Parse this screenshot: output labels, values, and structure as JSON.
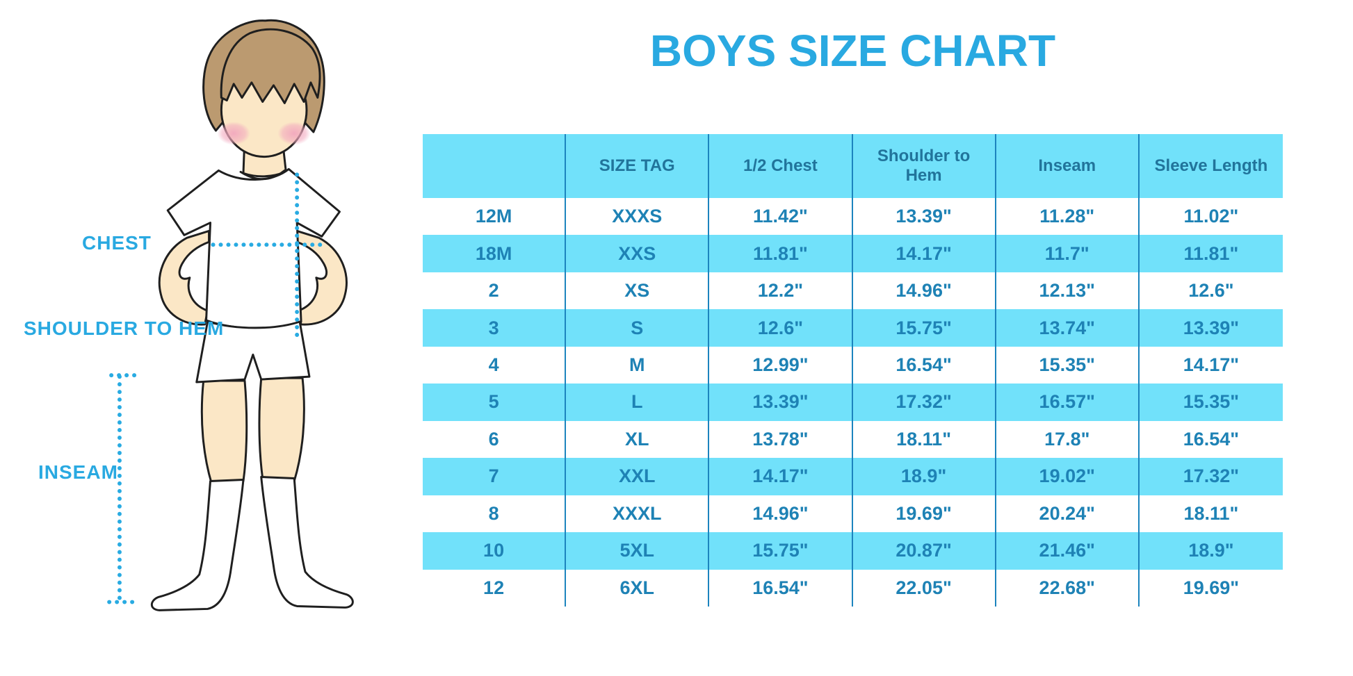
{
  "title": "BOYS SIZE CHART",
  "colors": {
    "accent": "#29A9E1",
    "table_stripe": "#71E1FA",
    "table_header_text": "#21749B",
    "table_cell_text": "#1E82B5",
    "table_divider": "#1C84BE",
    "skin": "#FBE7C6",
    "hair": "#BB9A70",
    "blush": "#F2A8BE",
    "dotted_line": "#29ABE2"
  },
  "figure_labels": {
    "chest": "CHEST",
    "shoulder_to_hem": "SHOULDER TO HEM",
    "inseam": "INSEAM"
  },
  "chart_data": {
    "type": "table",
    "title": "BOYS SIZE CHART",
    "columns": [
      "",
      "SIZE TAG",
      "1/2 Chest",
      "Shoulder to Hem",
      "Inseam",
      "Sleeve Length"
    ],
    "rows": [
      [
        "12M",
        "XXXS",
        "11.42\"",
        "13.39\"",
        "11.28\"",
        "11.02\""
      ],
      [
        "18M",
        "XXS",
        "11.81\"",
        "14.17\"",
        "11.7\"",
        "11.81\""
      ],
      [
        "2",
        "XS",
        "12.2\"",
        "14.96\"",
        "12.13\"",
        "12.6\""
      ],
      [
        "3",
        "S",
        "12.6\"",
        "15.75\"",
        "13.74\"",
        "13.39\""
      ],
      [
        "4",
        "M",
        "12.99\"",
        "16.54\"",
        "15.35\"",
        "14.17\""
      ],
      [
        "5",
        "L",
        "13.39\"",
        "17.32\"",
        "16.57\"",
        "15.35\""
      ],
      [
        "6",
        "XL",
        "13.78\"",
        "18.11\"",
        "17.8\"",
        "16.54\""
      ],
      [
        "7",
        "XXL",
        "14.17\"",
        "18.9\"",
        "19.02\"",
        "17.32\""
      ],
      [
        "8",
        "XXXL",
        "14.96\"",
        "19.69\"",
        "20.24\"",
        "18.11\""
      ],
      [
        "10",
        "5XL",
        "15.75\"",
        "20.87\"",
        "21.46\"",
        "18.9\""
      ],
      [
        "12",
        "6XL",
        "16.54\"",
        "22.05\"",
        "22.68\"",
        "19.69\""
      ]
    ],
    "striped_row_indices": [
      1,
      3,
      5,
      7,
      9
    ],
    "legend_position": "none",
    "grid": "column dividers only, alternating row shading"
  }
}
